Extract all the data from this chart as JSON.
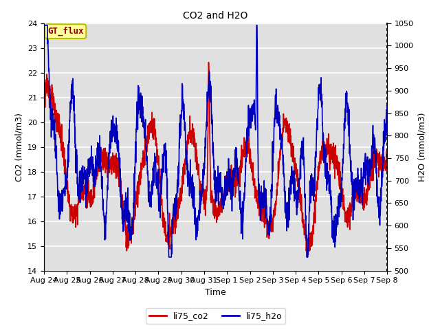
{
  "title": "CO2 and H2O",
  "xlabel": "Time",
  "ylabel_left": "CO2 (mmol/m3)",
  "ylabel_right": "H2O (mmol/m3)",
  "ylim_left": [
    14.0,
    24.0
  ],
  "ylim_right": [
    500,
    1050
  ],
  "yticks_left": [
    14.0,
    15.0,
    16.0,
    17.0,
    18.0,
    19.0,
    20.0,
    21.0,
    22.0,
    23.0,
    24.0
  ],
  "yticks_right": [
    500,
    550,
    600,
    650,
    700,
    750,
    800,
    850,
    900,
    950,
    1000,
    1050
  ],
  "background_color": "#e0e0e0",
  "fig_background": "#ffffff",
  "co2_color": "#cc0000",
  "h2o_color": "#0000bb",
  "linewidth_co2": 1.2,
  "linewidth_h2o": 1.2,
  "legend_co2": "li75_co2",
  "legend_h2o": "li75_h2o",
  "watermark_text": "GT_flux",
  "watermark_color": "#8b0000",
  "watermark_bg": "#ffff99",
  "watermark_border": "#bbbb00",
  "grid_color": "#ffffff",
  "xtick_labels": [
    "Aug 24",
    "Aug 25",
    "Aug 26",
    "Aug 27",
    "Aug 28",
    "Aug 29",
    "Aug 30",
    "Aug 31",
    "Sep 1",
    "Sep 2",
    "Sep 3",
    "Sep 4",
    "Sep 5",
    "Sep 6",
    "Sep 7",
    "Sep 8"
  ],
  "n_points": 2000,
  "title_fontsize": 10,
  "axis_fontsize": 9,
  "tick_fontsize": 8
}
